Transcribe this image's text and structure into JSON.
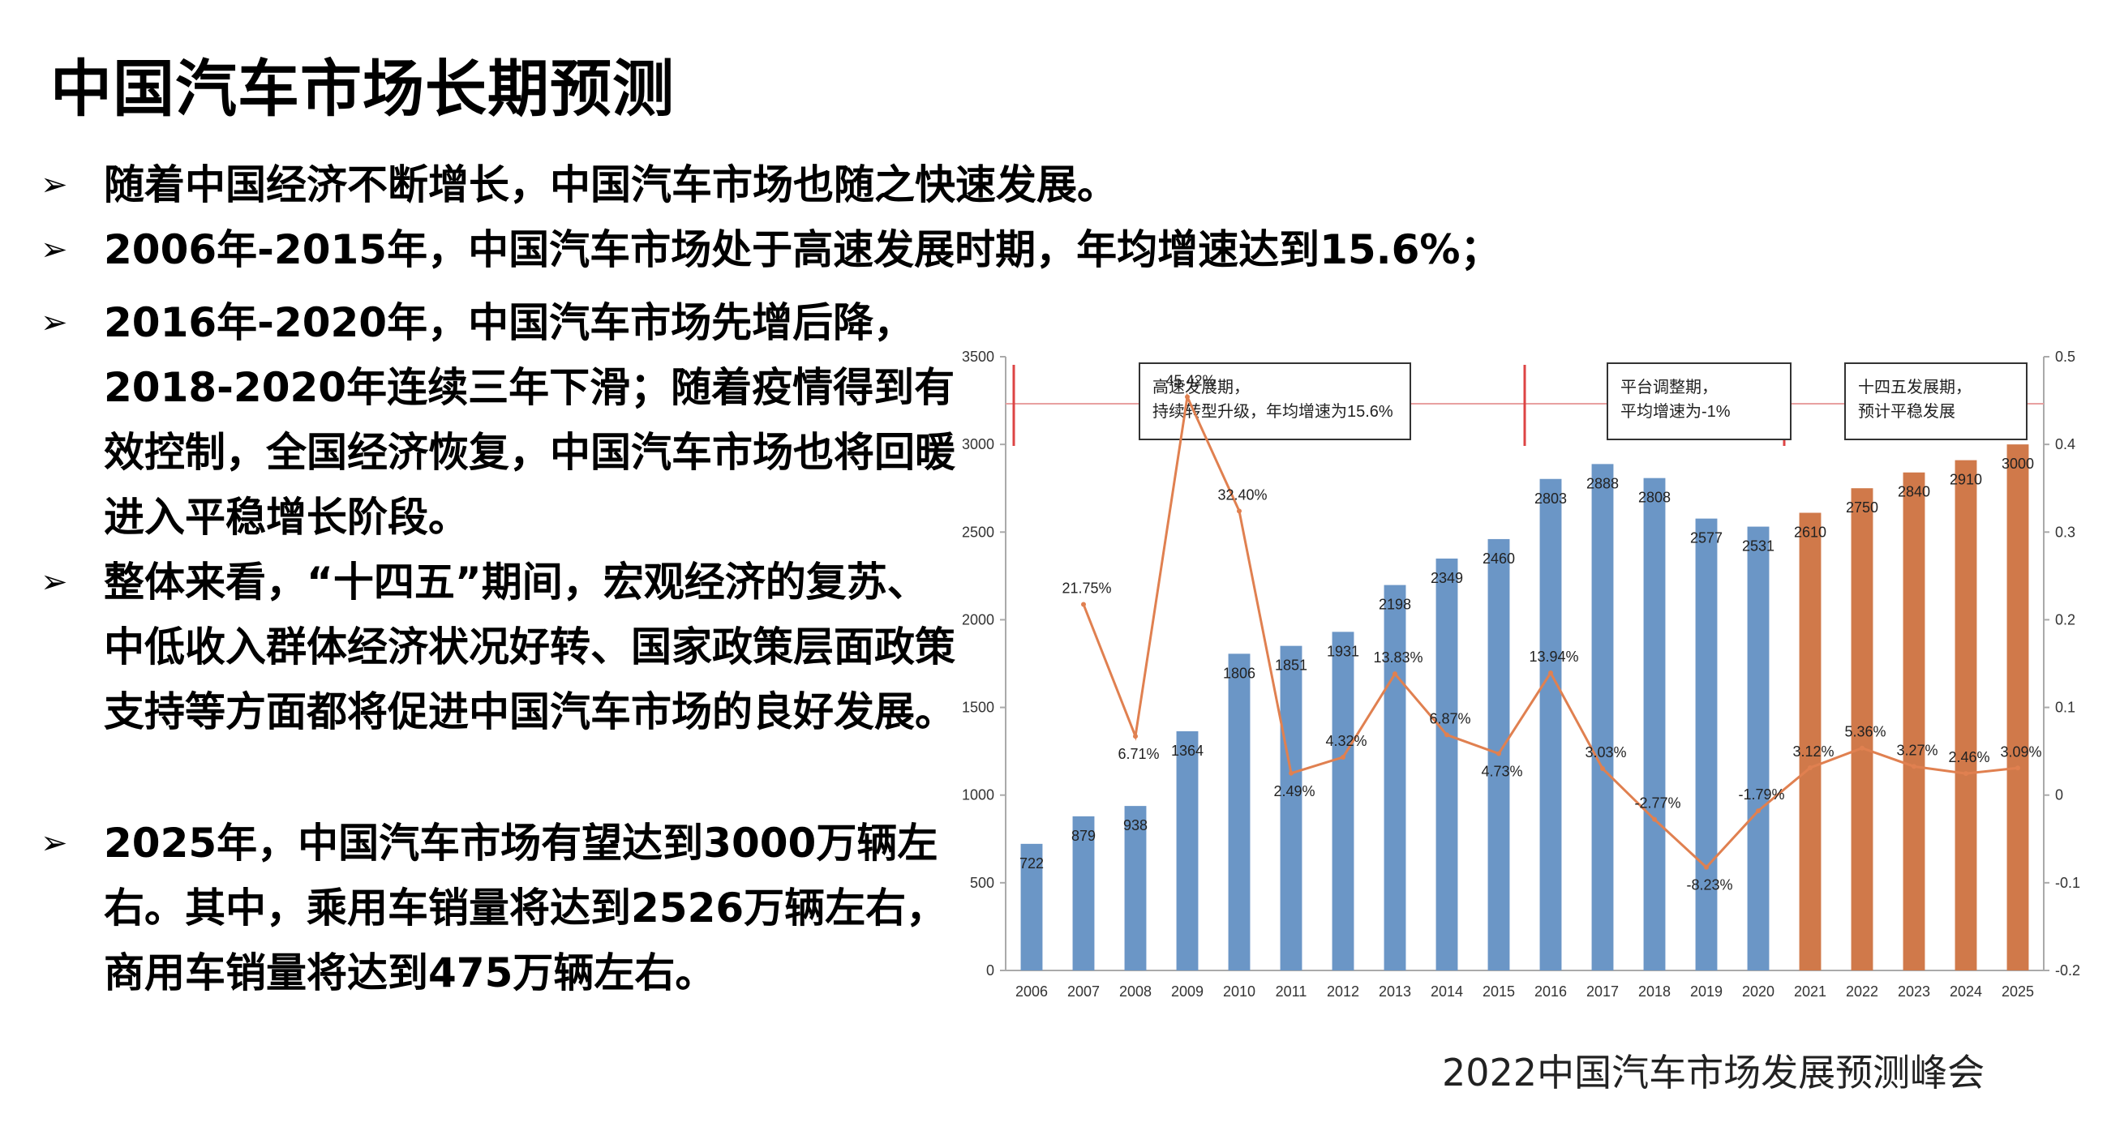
{
  "slide": {
    "title": "中国汽车市场长期预测",
    "bullet_mark": "➢",
    "bullets": [
      "随着中国经济不断增长，中国汽车市场也随之快速发展。",
      "2006年-2015年，中国汽车市场处于高速发展时期，年均增速达到15.6%；",
      "2016年-2020年，中国汽车市场先增后降，2018-2020年连续三年下滑；随着疫情得到有效控制，全国经济恢复，中国汽车市场也将回暖进入平稳增长阶段。",
      "整体来看，“十四五”期间，宏观经济的复苏、中低收入群体经济状况好转、国家政策层面政策支持等方面都将促进中国汽车市场的良好发展。",
      "2025年，中国汽车市场有望达到3000万辆左右。其中，乘用车销量将达到2526万辆左右，商用车销量将达到475万辆左右。"
    ],
    "footer": "2022中国汽车市场发展预测峰会"
  },
  "chart_data": {
    "type": "bar",
    "categories": [
      "2006",
      "2007",
      "2008",
      "2009",
      "2010",
      "2011",
      "2012",
      "2013",
      "2014",
      "2015",
      "2016",
      "2017",
      "2018",
      "2019",
      "2020",
      "2021",
      "2022",
      "2023",
      "2024",
      "2025"
    ],
    "values": [
      722,
      879,
      938,
      1364,
      1806,
      1851,
      1931,
      2198,
      2349,
      2460,
      2803,
      2888,
      2808,
      2577,
      2531,
      2610,
      2750,
      2840,
      2910,
      3000
    ],
    "forecast_from_index": 15,
    "colors": {
      "actual": "#6b96c6",
      "forecast": "#d0794a",
      "line": "#e08050",
      "marker": "#e8a0a0",
      "axis": "#aaaaaa"
    },
    "ylim": [
      0,
      3500
    ],
    "yticks": [
      0,
      500,
      1000,
      1500,
      2000,
      2500,
      3000,
      3500
    ],
    "y2lim": [
      -0.2,
      0.5
    ],
    "y2ticks": [
      "-0.2",
      "-0.1",
      "0",
      "0.1",
      "0.2",
      "0.3",
      "0.4",
      "0.5"
    ],
    "growth": {
      "values": [
        null,
        0.2175,
        0.0671,
        0.4542,
        0.324,
        0.0249,
        0.0432,
        0.1383,
        0.0687,
        0.0473,
        0.1394,
        0.0303,
        -0.0277,
        -0.0823,
        -0.0179,
        0.0312,
        0.0536,
        0.0327,
        0.0246,
        0.0309
      ],
      "labels": [
        "",
        "21.75%",
        "6.71%",
        "45.42%",
        "32.40%",
        "2.49%",
        "4.32%",
        "13.83%",
        "6.87%",
        "4.73%",
        "13.94%",
        "3.03%",
        "-2.77%",
        "-8.23%",
        "-1.79%",
        "3.12%",
        "5.36%",
        "3.27%",
        "2.46%",
        "3.09%"
      ]
    },
    "annotations": [
      {
        "text": "高速发展期，持续转型升级，年均增速为15.6%",
        "from": 0,
        "to": 10
      },
      {
        "text": "平台调整期，平均增速为-1%",
        "from": 10,
        "to": 15
      },
      {
        "text": "十四五发展期，预计平稳发展",
        "from": 15,
        "to": 19
      }
    ]
  }
}
